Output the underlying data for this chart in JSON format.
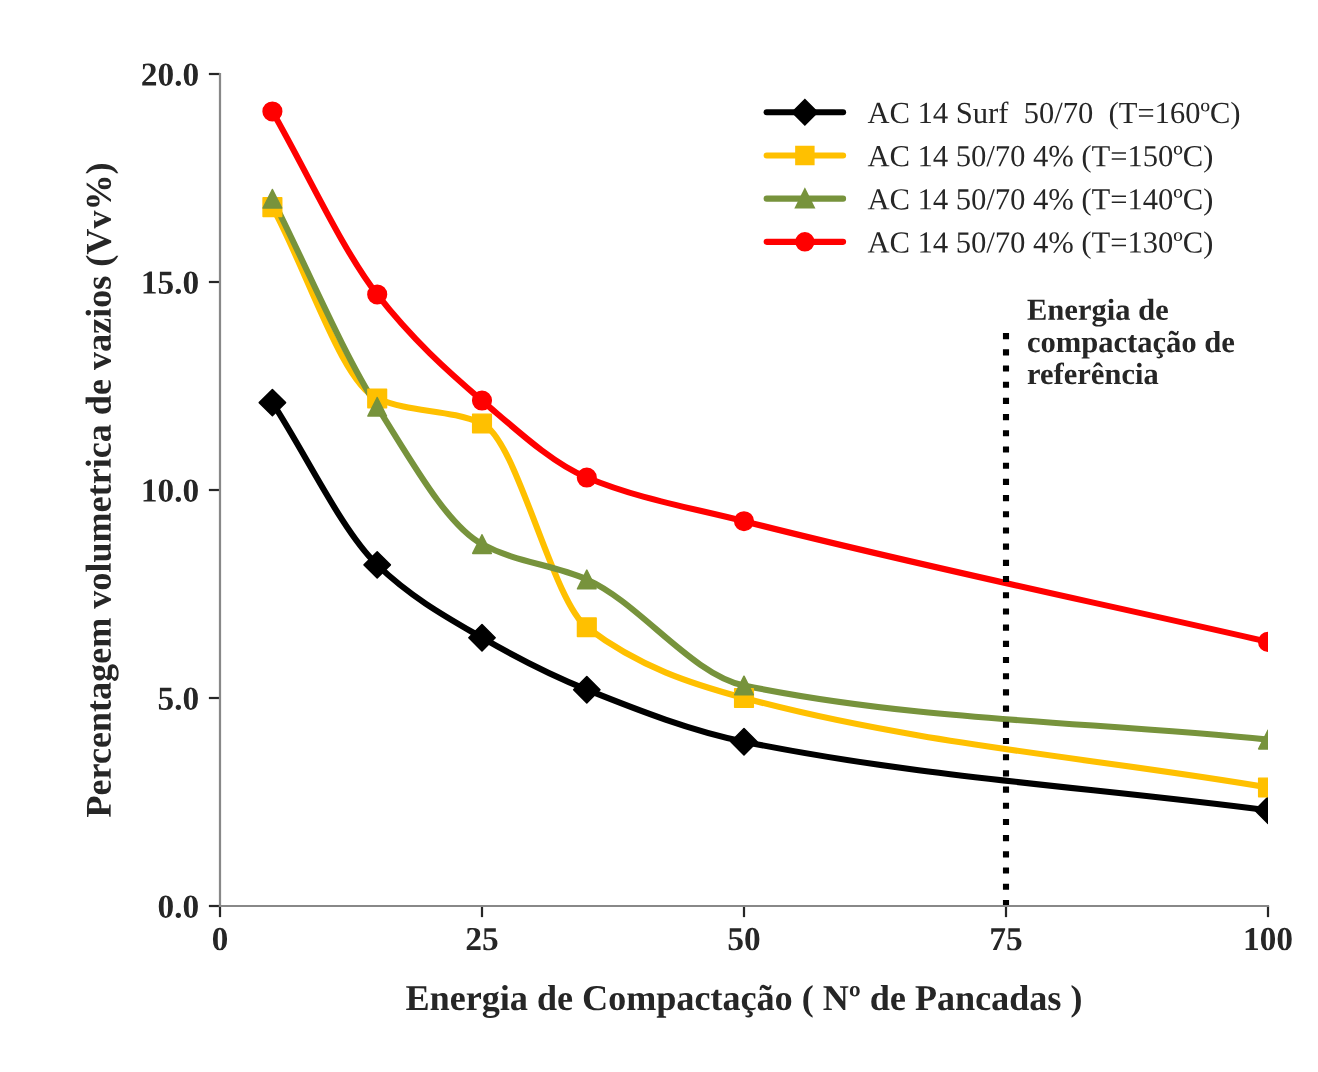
{
  "chart_data": {
    "type": "line",
    "xlabel": "Energia de Compactação ( Nº de Pancadas )",
    "ylabel": "Percentagem volumetrica de vazios (Vv%)",
    "x": [
      5,
      15,
      25,
      35,
      50,
      100
    ],
    "series": [
      {
        "name": "AC 14 Surf  50/70  (T=160ºC)",
        "color": "#000000",
        "marker": "diamond",
        "values": [
          12.1,
          8.2,
          6.45,
          5.2,
          3.95,
          2.3
        ]
      },
      {
        "name": "AC 14 50/70 4% (T=150ºC)",
        "color": "#ffc000",
        "marker": "square",
        "values": [
          16.8,
          12.2,
          11.6,
          6.7,
          5.0,
          2.85
        ]
      },
      {
        "name": "AC 14 50/70 4% (T=140ºC)",
        "color": "#77933c",
        "marker": "triangle",
        "values": [
          17.0,
          12.0,
          8.7,
          7.85,
          5.3,
          4.0
        ]
      },
      {
        "name": "AC 14 50/70 4% (T=130ºC)",
        "color": "#ff0000",
        "marker": "circle",
        "values": [
          19.1,
          14.7,
          12.15,
          10.3,
          9.25,
          6.35
        ]
      }
    ],
    "xlim": [
      0,
      100
    ],
    "xticks": [
      0,
      25,
      50,
      75,
      100
    ],
    "ylim": [
      0,
      20
    ],
    "yticks": [
      {
        "value": 0,
        "label": "0.0"
      },
      {
        "value": 5,
        "label": "5.0"
      },
      {
        "value": 10,
        "label": "10.0"
      },
      {
        "value": 15,
        "label": "15.0"
      },
      {
        "value": 20,
        "label": "20.0"
      }
    ],
    "ref_lines": [
      {
        "axis": "x",
        "value": 75,
        "label": "Energia de\ncompactação de\nreferência",
        "color": "#000000",
        "line_style": "dotted"
      }
    ],
    "grid": false,
    "legend": "top right"
  }
}
